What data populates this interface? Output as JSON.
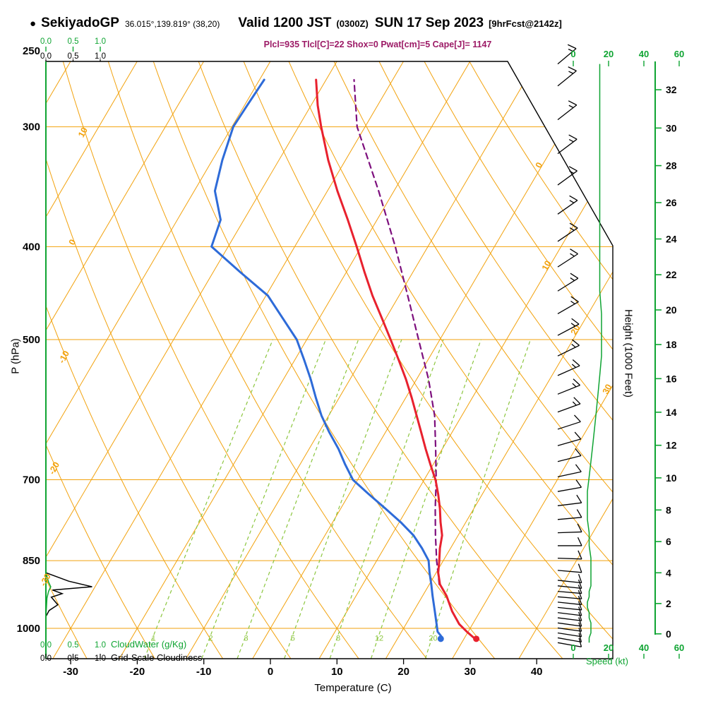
{
  "header": {
    "bullet": "●",
    "station": "SekiyadoGP",
    "coords": "36.015°,139.819° (38,20)",
    "valid": "Valid 1200 JST",
    "valid_sub": "(0300Z)",
    "date": "SUN 17 Sep 2023",
    "fcst": "[9hrFcst@2142z]",
    "indices": "Plcl=935 Tlcl[C]=22 Shox=0 Pwat[cm]=5 Cape[J]= 1147"
  },
  "axis_titles": {
    "pressure": "P (hPa)",
    "temperature": "Temperature (C)",
    "height": "Height (1000 Feet)",
    "speed": "Speed (kt)",
    "cloudwater": "CloudWater (g/Kg)",
    "cloudiness": "Grid-Scale Cloudiness"
  },
  "colors": {
    "grid_orange": "#f2a20d",
    "green": "#0fa432",
    "light_green": "#8cc63f",
    "temp_red": "#e8212e",
    "dewpoint_blue": "#2e6bd8",
    "parcel_purple": "#7d0f7d",
    "indices": "#9c1a66",
    "black": "#000000"
  },
  "chart_data": {
    "type": "line",
    "subtype": "skewT-logP sounding",
    "pressure_ticks_hpa": [
      250,
      300,
      400,
      500,
      700,
      850,
      1000
    ],
    "pressure_range_hpa": [
      250,
      1075
    ],
    "temp_ticks_c": [
      -30,
      -20,
      -10,
      0,
      10,
      20,
      30,
      40
    ],
    "height_ticks_kft": [
      0,
      2,
      4,
      6,
      8,
      10,
      12,
      14,
      16,
      18,
      20,
      22,
      24,
      26,
      28,
      30,
      32
    ],
    "speed_ticks_kt": [
      0,
      20,
      40,
      60
    ],
    "cloud_scale_ticks": [
      "0.0",
      "0.5",
      "1.0"
    ],
    "isotherms_c": {
      "min": -100,
      "max": 40,
      "step": 10
    },
    "dry_adiabats_c": {
      "min": -60,
      "max": 150,
      "step": 10
    },
    "adiabat_labels": [
      {
        "theta": 10,
        "p": 305
      },
      {
        "theta": 0,
        "p": 397
      },
      {
        "theta": -10,
        "p": 523
      },
      {
        "theta": -20,
        "p": 683
      },
      {
        "theta": -30,
        "p": 893
      }
    ],
    "isotherm_labels": [
      {
        "t": 0,
        "p": 330
      },
      {
        "t": 10,
        "p": 420
      },
      {
        "t": 20,
        "p": 490
      },
      {
        "t": 30,
        "p": 565
      }
    ],
    "mixing_ratio_lines_gkg": [
      1,
      2,
      3,
      5,
      8,
      12,
      20
    ],
    "temperature_c": [
      [
        1022,
        31.3
      ],
      [
        1008,
        29.8
      ],
      [
        990,
        28.0
      ],
      [
        960,
        25.8
      ],
      [
        925,
        23.6
      ],
      [
        900,
        21.6
      ],
      [
        875,
        20.3
      ],
      [
        850,
        19.4
      ],
      [
        825,
        18.4
      ],
      [
        800,
        17.6
      ],
      [
        775,
        16.2
      ],
      [
        750,
        14.9
      ],
      [
        725,
        13.4
      ],
      [
        700,
        11.7
      ],
      [
        675,
        9.6
      ],
      [
        650,
        7.5
      ],
      [
        625,
        5.4
      ],
      [
        600,
        3.2
      ],
      [
        575,
        0.9
      ],
      [
        550,
        -1.6
      ],
      [
        525,
        -4.4
      ],
      [
        500,
        -7.4
      ],
      [
        475,
        -10.6
      ],
      [
        450,
        -14.0
      ],
      [
        425,
        -17.3
      ],
      [
        400,
        -20.7
      ],
      [
        375,
        -24.4
      ],
      [
        350,
        -28.5
      ],
      [
        325,
        -32.6
      ],
      [
        300,
        -36.6
      ],
      [
        285,
        -39.0
      ],
      [
        268,
        -41.5
      ]
    ],
    "dewpoint_c": [
      [
        1022,
        26.6
      ],
      [
        1008,
        25.4
      ],
      [
        990,
        24.6
      ],
      [
        960,
        23.2
      ],
      [
        925,
        21.5
      ],
      [
        900,
        20.3
      ],
      [
        875,
        19.0
      ],
      [
        850,
        17.8
      ],
      [
        825,
        15.7
      ],
      [
        800,
        13.3
      ],
      [
        775,
        10.2
      ],
      [
        750,
        6.7
      ],
      [
        725,
        3.0
      ],
      [
        700,
        -0.7
      ],
      [
        675,
        -3.2
      ],
      [
        650,
        -5.6
      ],
      [
        625,
        -8.4
      ],
      [
        600,
        -11.1
      ],
      [
        575,
        -13.5
      ],
      [
        550,
        -15.9
      ],
      [
        525,
        -18.6
      ],
      [
        500,
        -21.5
      ],
      [
        475,
        -25.5
      ],
      [
        450,
        -29.7
      ],
      [
        425,
        -36.0
      ],
      [
        400,
        -42.5
      ],
      [
        375,
        -43.5
      ],
      [
        350,
        -46.9
      ],
      [
        325,
        -48.5
      ],
      [
        300,
        -49.8
      ],
      [
        285,
        -49.6
      ],
      [
        268,
        -49.3
      ]
    ],
    "parcel_c": [
      [
        900,
        21.5
      ],
      [
        850,
        19.0
      ],
      [
        800,
        16.6
      ],
      [
        750,
        14.2
      ],
      [
        700,
        11.8
      ],
      [
        650,
        9.0
      ],
      [
        600,
        5.9
      ],
      [
        550,
        1.8
      ],
      [
        500,
        -3.2
      ],
      [
        450,
        -8.7
      ],
      [
        400,
        -14.9
      ],
      [
        350,
        -22.3
      ],
      [
        300,
        -31.2
      ],
      [
        285,
        -33.3
      ],
      [
        268,
        -35.8
      ]
    ],
    "surface_temp_c": 31,
    "surface_dewpoint_c": 26,
    "wind_barbs": [
      [
        1035,
        100,
        9
      ],
      [
        1023,
        100,
        9
      ],
      [
        1011,
        99,
        10
      ],
      [
        999,
        98,
        10
      ],
      [
        987,
        98,
        10
      ],
      [
        975,
        97,
        9
      ],
      [
        963,
        97,
        9
      ],
      [
        951,
        96,
        8
      ],
      [
        939,
        96,
        8
      ],
      [
        927,
        95,
        9
      ],
      [
        915,
        95,
        9
      ],
      [
        903,
        96,
        10
      ],
      [
        891,
        96,
        10
      ],
      [
        870,
        95,
        10
      ],
      [
        845,
        92,
        10
      ],
      [
        820,
        90,
        9
      ],
      [
        795,
        88,
        9
      ],
      [
        770,
        85,
        8
      ],
      [
        745,
        83,
        8
      ],
      [
        720,
        80,
        8
      ],
      [
        695,
        78,
        9
      ],
      [
        670,
        76,
        10
      ],
      [
        645,
        74,
        11
      ],
      [
        620,
        72,
        12
      ],
      [
        595,
        70,
        13
      ],
      [
        570,
        68,
        14
      ],
      [
        545,
        66,
        15
      ],
      [
        520,
        64,
        16
      ],
      [
        495,
        62,
        16
      ],
      [
        470,
        60,
        16
      ],
      [
        445,
        58,
        15
      ],
      [
        420,
        57,
        15
      ],
      [
        395,
        56,
        15
      ],
      [
        370,
        55,
        15
      ],
      [
        345,
        54,
        15
      ],
      [
        320,
        53,
        15
      ],
      [
        295,
        52,
        15
      ],
      [
        272,
        51,
        15
      ],
      [
        258,
        50,
        15
      ]
    ],
    "cloudiness_profile": [
      [
        875,
        0
      ],
      [
        893,
        0.42
      ],
      [
        905,
        0.85
      ],
      [
        912,
        0.12
      ],
      [
        920,
        0.3
      ],
      [
        928,
        0.1
      ],
      [
        945,
        0.22
      ],
      [
        958,
        0.06
      ],
      [
        972,
        0
      ]
    ],
    "cloudwater_profile_gkg": [
      [
        875,
        0
      ],
      [
        895,
        0.05
      ],
      [
        905,
        0.09
      ],
      [
        915,
        0.05
      ],
      [
        930,
        0.02
      ],
      [
        950,
        0.01
      ],
      [
        972,
        0
      ]
    ]
  }
}
